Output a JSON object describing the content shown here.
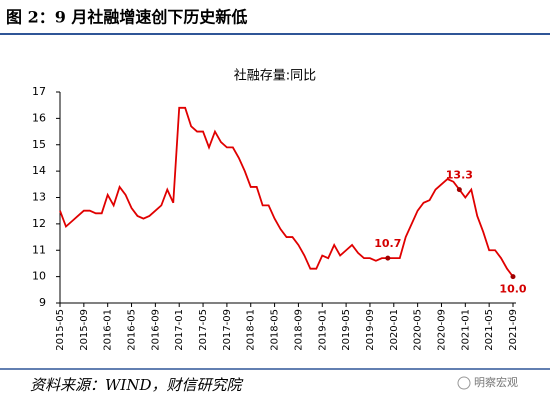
{
  "header": {
    "title": "图 2：9 月社融增速创下历史新低"
  },
  "chart_data": {
    "type": "line",
    "title": "社融存量:同比",
    "categories": [
      "2015-05",
      null,
      null,
      null,
      "2015-09",
      null,
      null,
      null,
      "2016-01",
      null,
      null,
      null,
      "2016-05",
      null,
      null,
      null,
      "2016-09",
      null,
      null,
      null,
      "2017-01",
      null,
      null,
      null,
      "2017-05",
      null,
      null,
      null,
      "2017-09",
      null,
      null,
      null,
      "2018-01",
      null,
      null,
      null,
      "2018-05",
      null,
      null,
      null,
      "2018-09",
      null,
      null,
      null,
      "2019-01",
      null,
      null,
      null,
      "2019-05",
      null,
      null,
      null,
      "2019-09",
      null,
      null,
      null,
      "2020-01",
      null,
      null,
      null,
      "2020-05",
      null,
      null,
      null,
      "2020-09",
      null,
      null,
      null,
      "2021-01",
      null,
      null,
      null,
      "2021-05",
      null,
      null,
      null,
      "2021-09"
    ],
    "values": [
      12.5,
      11.9,
      12.1,
      12.3,
      12.5,
      12.5,
      12.4,
      12.4,
      13.1,
      12.7,
      13.4,
      13.1,
      12.6,
      12.3,
      12.2,
      12.3,
      12.5,
      12.7,
      13.3,
      12.8,
      16.4,
      16.4,
      15.7,
      15.5,
      15.5,
      14.9,
      15.5,
      15.1,
      14.9,
      14.9,
      14.5,
      14.0,
      13.4,
      13.4,
      12.7,
      12.7,
      12.2,
      11.8,
      11.5,
      11.5,
      11.2,
      10.8,
      10.3,
      10.3,
      10.8,
      10.7,
      11.2,
      10.8,
      11.0,
      11.2,
      10.9,
      10.7,
      10.7,
      10.6,
      10.7,
      10.7,
      10.7,
      10.7,
      11.5,
      12.0,
      12.5,
      12.8,
      12.9,
      13.3,
      13.5,
      13.7,
      13.6,
      13.3,
      13.0,
      13.3,
      12.3,
      11.7,
      11.0,
      11.0,
      10.7,
      10.3,
      10.0
    ],
    "value_labels": [
      null,
      null,
      null,
      null,
      null,
      null,
      null,
      null,
      null,
      null,
      null,
      null,
      null,
      null,
      null,
      null,
      null,
      null,
      null,
      null,
      null,
      null,
      null,
      null,
      null,
      null,
      null,
      null,
      null,
      null,
      null,
      null,
      null,
      null,
      null,
      null,
      null,
      null,
      null,
      null,
      null,
      null,
      null,
      null,
      null,
      null,
      null,
      null,
      null,
      null,
      null,
      null,
      null,
      null,
      null,
      "10.7",
      null,
      null,
      null,
      null,
      null,
      null,
      null,
      null,
      null,
      null,
      null,
      "13.3",
      null,
      null,
      null,
      null,
      null,
      null,
      null,
      null,
      "10.0"
    ],
    "color": "#e00000",
    "ylim": [
      9,
      17
    ],
    "yticks": [
      9,
      10,
      11,
      12,
      13,
      14,
      15,
      16,
      17
    ],
    "grid": false
  },
  "footer": {
    "source": "资料来源：WIND，财信研究院",
    "watermark": "明察宏观"
  }
}
